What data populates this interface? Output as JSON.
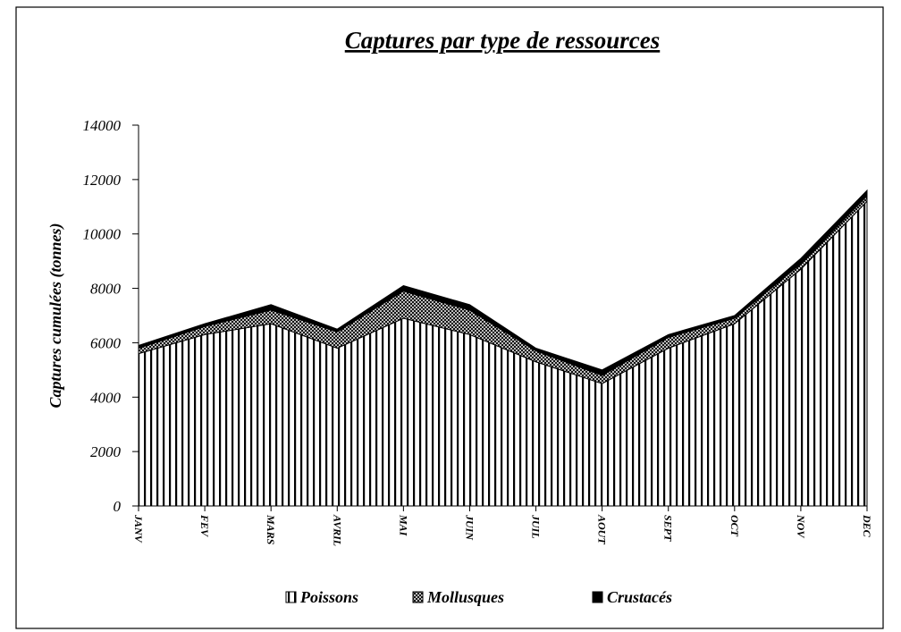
{
  "chart_data": {
    "type": "stacked_area",
    "title": "Captures par type de ressources",
    "y_label": "Captures cumulées (tonnes)",
    "categories": [
      "JANV",
      "FEV",
      "MARS",
      "AVRIL",
      "MAI",
      "JUIN",
      "JUIL",
      "AOUT",
      "SEPT",
      "OCT",
      "NOV",
      "DEC"
    ],
    "series": [
      {
        "name": "Poissons",
        "color": "#000000",
        "pattern": "vertical-stripes",
        "values": [
          5600,
          6300,
          6700,
          5800,
          6900,
          6300,
          5300,
          4500,
          5800,
          6700,
          8700,
          11200
        ]
      },
      {
        "name": "Mollusques",
        "color": "#000000",
        "pattern": "crosshatch",
        "values": [
          200,
          300,
          500,
          600,
          1000,
          900,
          400,
          300,
          400,
          200,
          200,
          200
        ]
      },
      {
        "name": "Crustacés",
        "color": "#000000",
        "pattern": "solid",
        "values": [
          100,
          100,
          200,
          100,
          200,
          200,
          100,
          200,
          100,
          100,
          200,
          200
        ]
      }
    ],
    "ylim": [
      0,
      14000
    ],
    "yticks": [
      0,
      2000,
      4000,
      6000,
      8000,
      10000,
      12000,
      14000
    ],
    "legend": "bottom"
  }
}
